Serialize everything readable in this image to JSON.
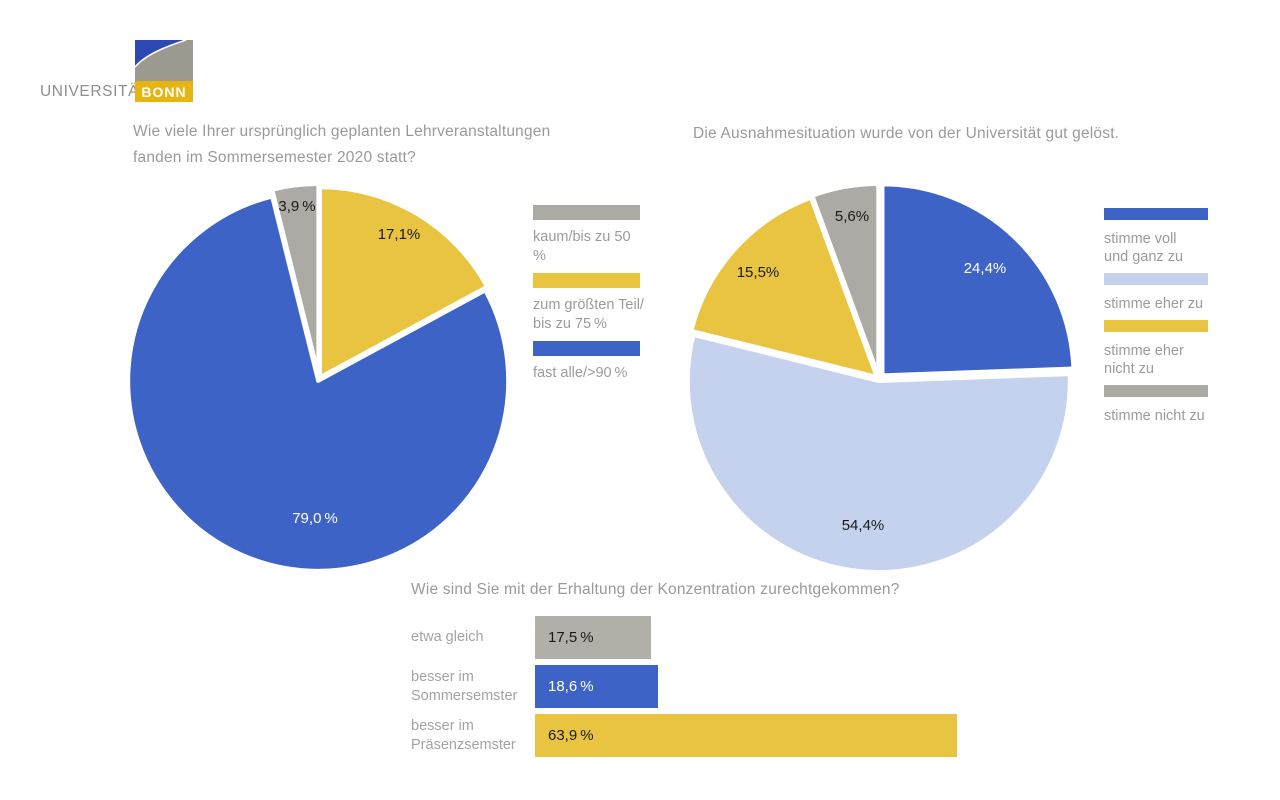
{
  "logo": {
    "wordmark": "UNIVERSITÄT",
    "box_text": "BONN",
    "gold": "#e7b512",
    "gray": "#9b9990",
    "blue": "#2c49b4"
  },
  "palette": {
    "blue": "#3e63c6",
    "light_blue": "#c4d2ee",
    "yellow": "#e8c440",
    "gray": "#acaaa4",
    "title_text": "#9a9a9a",
    "label_dark": "#1a1a1a",
    "label_light": "#ffffff"
  },
  "chart_data": [
    {
      "type": "pie",
      "title": "Wie viele Ihrer ursprünglich geplanten Lehrveranstaltungen fanden im Sommersemester 2020 statt?",
      "slices": [
        {
          "name": "zum größten Teil/bis zu 75 %",
          "value": 17.1,
          "label": "17,1%",
          "color": "#e8c440",
          "label_color": "#1a1a1a"
        },
        {
          "name": "fast alle/>90 %",
          "value": 79.0,
          "label": "79,0 %",
          "color": "#3e63c6",
          "label_color": "#ffffff"
        },
        {
          "name": "kaum/bis zu 50 %",
          "value": 3.9,
          "label": "3,9 %",
          "color": "#acaaa4",
          "label_color": "#1a1a1a"
        }
      ],
      "legend": [
        {
          "label": "kaum/bis zu 50 %",
          "color": "#acaaa4"
        },
        {
          "label": "zum größten Teil/\nbis zu 75 %",
          "color": "#e8c440"
        },
        {
          "label": "fast alle/>90 %",
          "color": "#3e63c6"
        }
      ],
      "legend_position": "right"
    },
    {
      "type": "pie",
      "title": "Die Ausnahmesituation wurde von der Universität gut gelöst.",
      "slices": [
        {
          "name": "stimme voll und ganz zu",
          "value": 24.4,
          "label": "24,4%",
          "color": "#3e63c6",
          "label_color": "#ffffff"
        },
        {
          "name": "stimme eher zu",
          "value": 54.4,
          "label": "54,4%",
          "color": "#c4d2ee",
          "label_color": "#1a1a1a"
        },
        {
          "name": "stimme eher nicht zu",
          "value": 15.5,
          "label": "15,5%",
          "color": "#e8c440",
          "label_color": "#1a1a1a"
        },
        {
          "name": "stimme nicht zu",
          "value": 5.6,
          "label": "5,6%",
          "color": "#acaaa4",
          "label_color": "#1a1a1a"
        }
      ],
      "legend": [
        {
          "label": "stimme voll\nund ganz zu",
          "color": "#3e63c6"
        },
        {
          "label": "stimme eher zu",
          "color": "#c4d2ee"
        },
        {
          "label": "stimme eher\nnicht zu",
          "color": "#e8c440"
        },
        {
          "label": "stimme nicht zu",
          "color": "#acaaa4"
        }
      ],
      "legend_position": "right"
    },
    {
      "type": "bar",
      "title": "Wie sind Sie mit der Erhaltung der Konzentration zurechtgekommen?",
      "orientation": "horizontal",
      "xlim": [
        0,
        100
      ],
      "categories": [
        "etwa gleich",
        "besser im\nSommersemster",
        "besser im\nPräsenzsemster"
      ],
      "values": [
        17.5,
        18.6,
        63.9
      ],
      "rows": [
        {
          "category": "etwa gleich",
          "value": 17.5,
          "label": "17,5 %",
          "color": "#b1afa8",
          "label_color": "#1a1a1a"
        },
        {
          "category": "besser im\nSommersemster",
          "value": 18.6,
          "label": "18,6 %",
          "color": "#3e63c6",
          "label_color": "#ffffff"
        },
        {
          "category": "besser im\nPräsenzsemster",
          "value": 63.9,
          "label": "63,9 %",
          "color": "#e8c440",
          "label_color": "#1a1a1a"
        }
      ]
    }
  ]
}
